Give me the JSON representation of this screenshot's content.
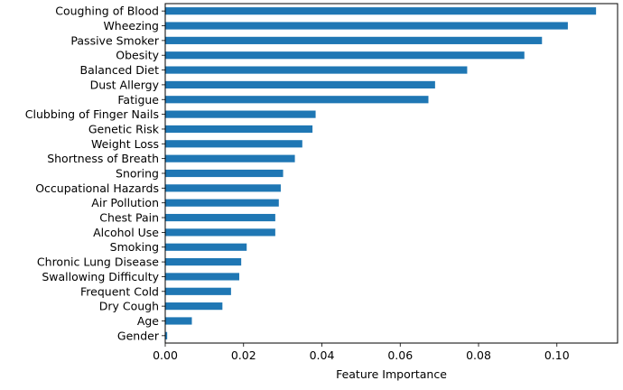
{
  "chart_data": {
    "type": "bar",
    "orientation": "horizontal",
    "categories": [
      "Coughing of Blood",
      "Wheezing",
      "Passive Smoker",
      "Obesity",
      "Balanced Diet",
      "Dust Allergy",
      "Fatigue",
      "Clubbing of Finger Nails",
      "Genetic Risk",
      "Weight Loss",
      "Shortness of Breath",
      "Snoring",
      "Occupational Hazards",
      "Air Pollution",
      "Chest Pain",
      "Alcohol Use",
      "Smoking",
      "Chronic Lung Disease",
      "Swallowing Difficulty",
      "Frequent Cold",
      "Dry Cough",
      "Age",
      "Gender"
    ],
    "values": [
      0.11,
      0.1028,
      0.0962,
      0.0917,
      0.0771,
      0.0689,
      0.0672,
      0.0384,
      0.0376,
      0.035,
      0.0331,
      0.0301,
      0.0295,
      0.029,
      0.0281,
      0.0281,
      0.0208,
      0.0194,
      0.0189,
      0.0168,
      0.0146,
      0.0068,
      0.0005
    ],
    "title": "",
    "xlabel": "Feature Importance",
    "ylabel": "",
    "xlim": [
      0,
      0.1155
    ],
    "xticks": [
      "0.00",
      "0.02",
      "0.04",
      "0.06",
      "0.08",
      "0.10"
    ],
    "grid": false,
    "bar_color": "#1f77b4"
  }
}
